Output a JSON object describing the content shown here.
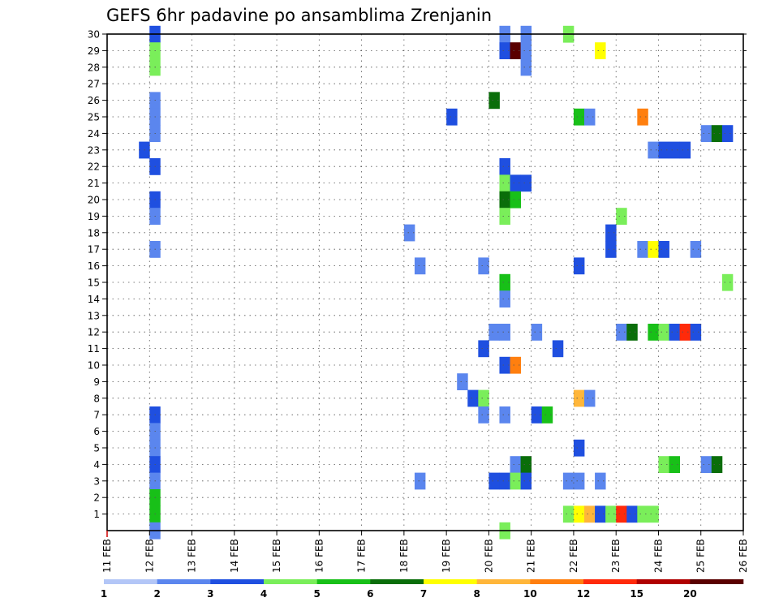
{
  "chart_data": {
    "type": "heatmap",
    "title": "GEFS 6hr padavine po ansamblima Zrenjanin",
    "xlabel": "",
    "ylabel": "",
    "x_range": [
      0,
      15
    ],
    "x_ticks": [
      {
        "x": 0,
        "label": "11 FEB"
      },
      {
        "x": 1,
        "label": "12 FEB"
      },
      {
        "x": 2,
        "label": "13 FEB"
      },
      {
        "x": 3,
        "label": "14 FEB"
      },
      {
        "x": 4,
        "label": "15 FEB"
      },
      {
        "x": 5,
        "label": "16 FEB"
      },
      {
        "x": 6,
        "label": "17 FEB"
      },
      {
        "x": 7,
        "label": "18 FEB"
      },
      {
        "x": 8,
        "label": "19 FEB"
      },
      {
        "x": 9,
        "label": "20 FEB"
      },
      {
        "x": 10,
        "label": "21 FEB"
      },
      {
        "x": 11,
        "label": "22 FEB"
      },
      {
        "x": 12,
        "label": "23 FEB"
      },
      {
        "x": 13,
        "label": "24 FEB"
      },
      {
        "x": 14,
        "label": "25 FEB"
      },
      {
        "x": 15,
        "label": "26 FEB"
      }
    ],
    "y_range": [
      0,
      30
    ],
    "y_ticks": [
      1,
      2,
      3,
      4,
      5,
      6,
      7,
      8,
      9,
      10,
      11,
      12,
      13,
      14,
      15,
      16,
      17,
      18,
      19,
      20,
      21,
      22,
      23,
      24,
      25,
      26,
      27,
      28,
      29,
      30
    ],
    "grid": true,
    "colorbar": {
      "position": "bottom",
      "labels": [
        "1",
        "2",
        "3",
        "4",
        "5",
        "6",
        "7",
        "8",
        "10",
        "12",
        "15",
        "20"
      ],
      "colors": [
        "#b3c6f7",
        "#5b86ee",
        "#1f4fe0",
        "#7aee5a",
        "#18c018",
        "#0a6e0a",
        "#ffff00",
        "#ffb63a",
        "#ff7f0f",
        "#ff2a0a",
        "#b00000",
        "#5a0000"
      ]
    },
    "cells": [
      [
        1.0,
        30,
        2
      ],
      [
        1.0,
        29,
        3
      ],
      [
        1.0,
        28,
        3
      ],
      [
        1.0,
        26,
        1
      ],
      [
        1.0,
        25,
        1
      ],
      [
        1.0,
        24,
        1
      ],
      [
        0.75,
        23,
        2
      ],
      [
        1.0,
        22,
        2
      ],
      [
        1.0,
        20,
        2
      ],
      [
        1.0,
        19,
        1
      ],
      [
        1.0,
        17,
        1
      ],
      [
        1.0,
        7,
        2
      ],
      [
        1.0,
        6,
        1
      ],
      [
        1.0,
        5,
        1
      ],
      [
        1.0,
        4,
        2
      ],
      [
        1.0,
        3,
        1
      ],
      [
        1.0,
        2,
        4
      ],
      [
        1.0,
        1,
        4
      ],
      [
        1.0,
        0,
        1
      ],
      [
        7.0,
        18,
        1
      ],
      [
        7.25,
        16,
        1
      ],
      [
        7.25,
        3,
        1
      ],
      [
        8.0,
        25,
        2
      ],
      [
        8.25,
        9,
        1
      ],
      [
        8.5,
        8,
        2
      ],
      [
        8.75,
        16,
        1
      ],
      [
        8.75,
        11,
        2
      ],
      [
        8.75,
        8,
        3
      ],
      [
        8.75,
        7,
        1
      ],
      [
        9.0,
        26,
        5
      ],
      [
        9.0,
        12,
        1
      ],
      [
        9.0,
        3,
        2
      ],
      [
        9.25,
        30,
        1
      ],
      [
        9.25,
        29,
        2
      ],
      [
        9.25,
        22,
        2
      ],
      [
        9.25,
        21,
        3
      ],
      [
        9.25,
        20,
        5
      ],
      [
        9.25,
        19,
        3
      ],
      [
        9.25,
        15,
        4
      ],
      [
        9.25,
        14,
        1
      ],
      [
        9.25,
        12,
        1
      ],
      [
        9.25,
        10,
        2
      ],
      [
        9.25,
        7,
        1
      ],
      [
        9.25,
        3,
        2
      ],
      [
        9.25,
        0,
        3
      ],
      [
        9.5,
        29,
        11
      ],
      [
        9.5,
        21,
        2
      ],
      [
        9.5,
        20,
        4
      ],
      [
        9.5,
        10,
        8
      ],
      [
        9.5,
        4,
        1
      ],
      [
        9.5,
        3,
        3
      ],
      [
        9.75,
        30,
        1
      ],
      [
        9.75,
        29,
        1
      ],
      [
        9.75,
        28,
        1
      ],
      [
        9.75,
        21,
        2
      ],
      [
        9.75,
        4,
        5
      ],
      [
        9.75,
        3,
        2
      ],
      [
        10.0,
        12,
        1
      ],
      [
        10.0,
        7,
        2
      ],
      [
        10.25,
        7,
        4
      ],
      [
        10.5,
        11,
        2
      ],
      [
        10.75,
        30,
        3
      ],
      [
        10.75,
        3,
        1
      ],
      [
        10.75,
        1,
        3
      ],
      [
        11.0,
        25,
        4
      ],
      [
        11.0,
        16,
        2
      ],
      [
        11.0,
        8,
        7
      ],
      [
        11.0,
        5,
        2
      ],
      [
        11.0,
        3,
        1
      ],
      [
        11.0,
        1,
        6
      ],
      [
        11.25,
        25,
        1
      ],
      [
        11.25,
        8,
        1
      ],
      [
        11.25,
        1,
        7
      ],
      [
        11.5,
        29,
        6
      ],
      [
        11.5,
        3,
        1
      ],
      [
        11.5,
        1,
        2
      ],
      [
        11.75,
        18,
        2
      ],
      [
        11.75,
        17,
        2
      ],
      [
        11.75,
        1,
        3
      ],
      [
        12.0,
        19,
        3
      ],
      [
        12.0,
        12,
        1
      ],
      [
        12.0,
        1,
        9
      ],
      [
        12.25,
        12,
        5
      ],
      [
        12.25,
        1,
        2
      ],
      [
        12.5,
        25,
        8
      ],
      [
        12.5,
        17,
        1
      ],
      [
        12.5,
        1,
        3
      ],
      [
        12.75,
        23,
        1
      ],
      [
        12.75,
        17,
        6
      ],
      [
        12.75,
        12,
        4
      ],
      [
        12.75,
        1,
        3
      ],
      [
        13.0,
        23,
        2
      ],
      [
        13.0,
        17,
        2
      ],
      [
        13.0,
        12,
        3
      ],
      [
        13.0,
        4,
        3
      ],
      [
        13.25,
        23,
        2
      ],
      [
        13.25,
        12,
        2
      ],
      [
        13.25,
        4,
        4
      ],
      [
        13.5,
        23,
        2
      ],
      [
        13.5,
        12,
        9
      ],
      [
        13.75,
        17,
        1
      ],
      [
        13.75,
        12,
        2
      ],
      [
        14.0,
        24,
        1
      ],
      [
        14.0,
        4,
        1
      ],
      [
        14.25,
        24,
        5
      ],
      [
        14.25,
        4,
        5
      ],
      [
        14.5,
        24,
        2
      ],
      [
        14.5,
        15,
        3
      ]
    ]
  }
}
